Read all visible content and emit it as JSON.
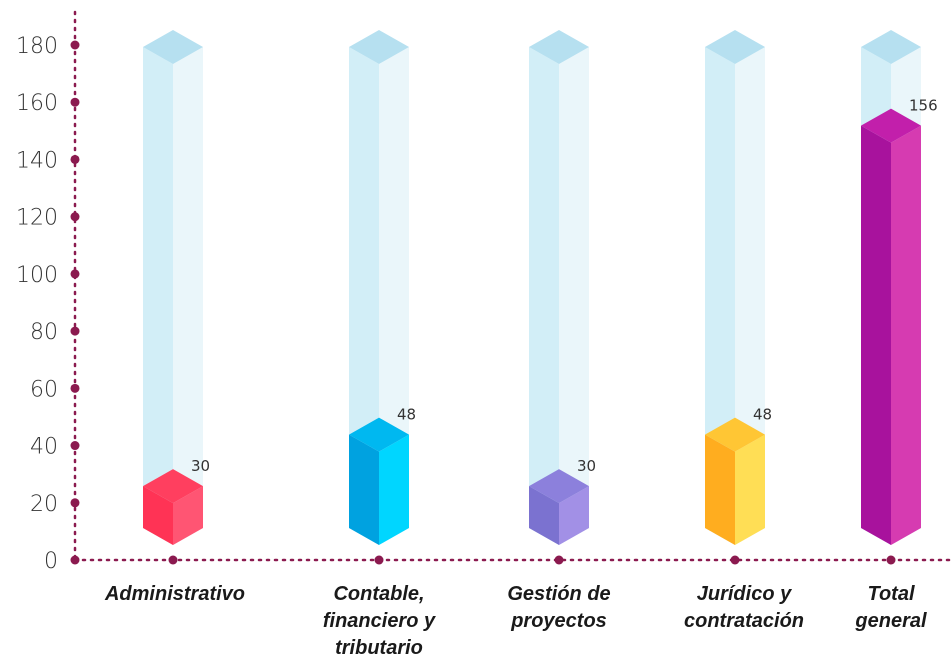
{
  "chart_data": {
    "type": "bar",
    "categories": [
      "Administrativo",
      "Contable, financiero y tributario",
      "Gestión de proyectos",
      "Jurídico y contratación",
      "Total general"
    ],
    "category_lines": [
      [
        "Administrativo"
      ],
      [
        "Contable,",
        "financiero y",
        "tributario"
      ],
      [
        "Gestión de",
        "proyectos"
      ],
      [
        "Jurídico y",
        "contratación"
      ],
      [
        "Total",
        "general"
      ]
    ],
    "values": [
      30,
      48,
      30,
      48,
      156
    ],
    "value_labels": [
      "30",
      "48",
      "30",
      "48",
      "156"
    ],
    "ylim": [
      0,
      180
    ],
    "yticks": [
      0,
      20,
      40,
      60,
      80,
      100,
      120,
      140,
      160,
      180
    ],
    "title": "",
    "xlabel": "",
    "ylabel": "",
    "legend": "none",
    "grid": false,
    "colors": {
      "axis": "#8b1a4f",
      "ghost_front": "#d2eef7",
      "ghost_side": "#eaf6fa",
      "ghost_top": "#b6e0f0",
      "bars": [
        {
          "front": "#ff3355",
          "side": "#ff5573",
          "top": "#ff3f5f"
        },
        {
          "front": "#00a2e0",
          "side": "#00d6ff",
          "top": "#00b8f0"
        },
        {
          "front": "#7b72d0",
          "side": "#a290e6",
          "top": "#8c80dc"
        },
        {
          "front": "#ffad1f",
          "side": "#ffde55",
          "top": "#ffc634"
        },
        {
          "front": "#a8129d",
          "side": "#d63bb1",
          "top": "#c21fab"
        }
      ]
    }
  }
}
